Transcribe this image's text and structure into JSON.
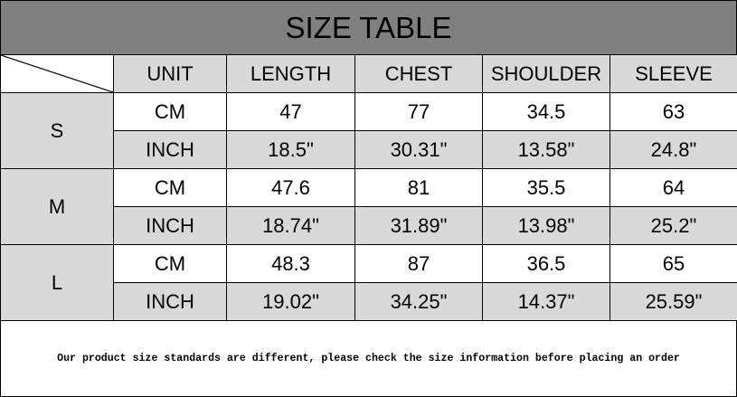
{
  "title": "SIZE TABLE",
  "headers": [
    "UNIT",
    "LENGTH",
    "CHEST",
    "SHOULDER",
    "SLEEVE"
  ],
  "sizes": [
    {
      "size": "S",
      "rows": [
        [
          "CM",
          "47",
          "77",
          "34.5",
          "63"
        ],
        [
          "INCH",
          "18.5\"",
          "30.31\"",
          "13.58\"",
          "24.8\""
        ]
      ]
    },
    {
      "size": "M",
      "rows": [
        [
          "CM",
          "47.6",
          "81",
          "35.5",
          "64"
        ],
        [
          "INCH",
          "18.74\"",
          "31.89\"",
          "13.98\"",
          "25.2\""
        ]
      ]
    },
    {
      "size": "L",
      "rows": [
        [
          "CM",
          "48.3",
          "87",
          "36.5",
          "65"
        ],
        [
          "INCH",
          "19.02\"",
          "34.25\"",
          "14.37\"",
          "25.59\""
        ]
      ]
    }
  ],
  "footer": "Our product size standards are different, please check the size information before placing an order",
  "colors": {
    "title_bg": "#808080",
    "shaded_cell": "#d9d9d9"
  }
}
